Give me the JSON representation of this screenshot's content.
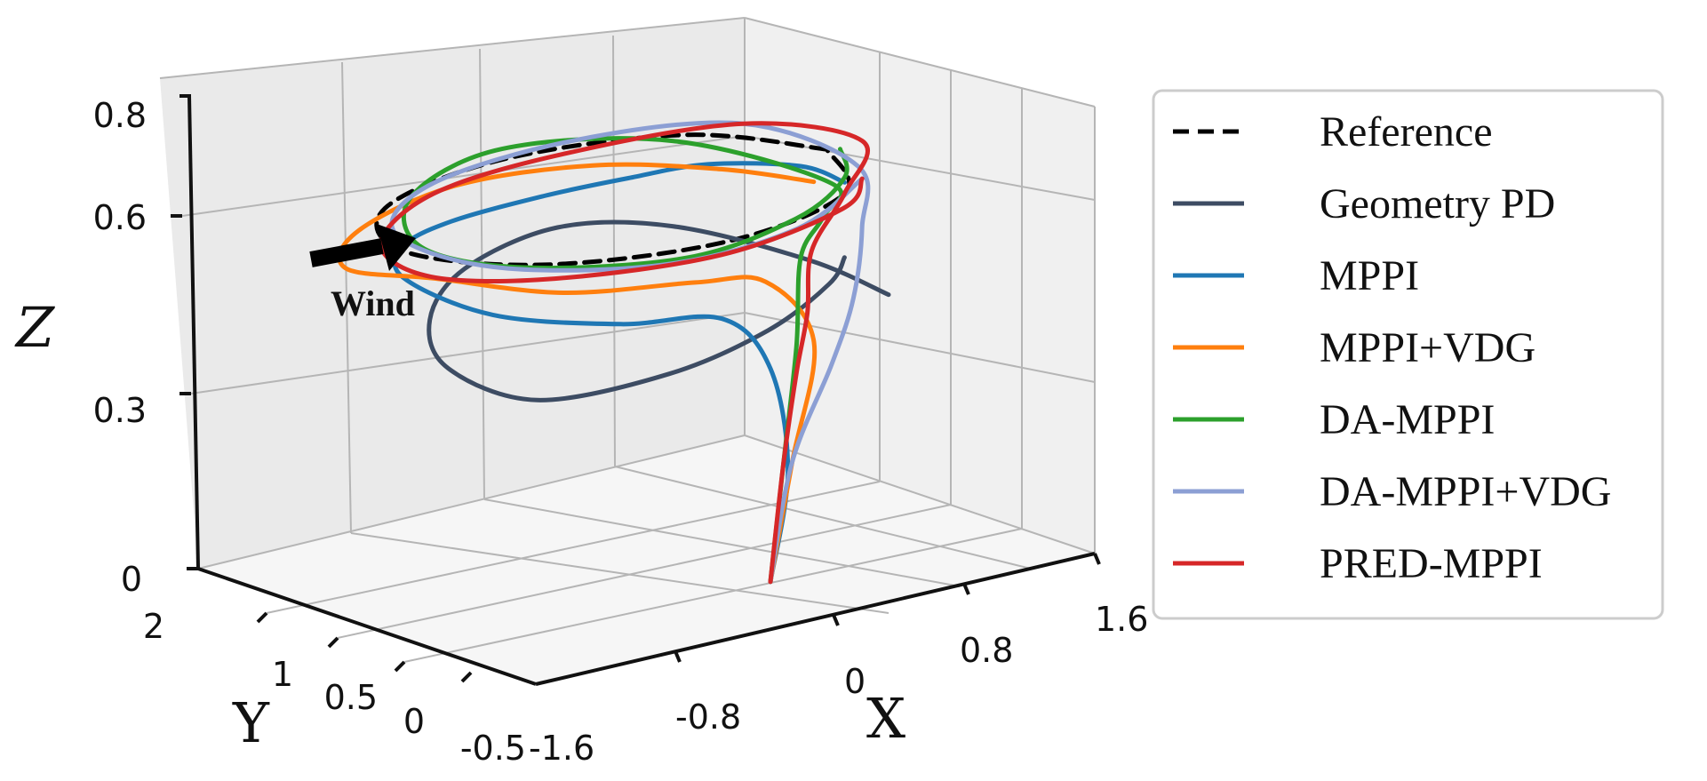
{
  "chart_data": {
    "type": "line",
    "projection": "3d",
    "title": "",
    "xlabel": "X",
    "ylabel": "Y",
    "zlabel": "Z",
    "xticks": [
      "-1.6",
      "-0.8",
      "0",
      "0.8",
      "1.6"
    ],
    "yticks": [
      "-0.5",
      "0",
      "0.5",
      "1",
      "2"
    ],
    "zticks": [
      "0",
      "0.3",
      "0.6",
      "0.8"
    ],
    "xlim": [
      -1.6,
      1.6
    ],
    "ylim": [
      -0.5,
      2
    ],
    "zlim": [
      0,
      0.8
    ],
    "grid": true,
    "legend_position": "right",
    "annotation": {
      "label": "Wind",
      "arrow": "pointing toward +x"
    },
    "series": [
      {
        "name": "Reference",
        "color": "#000000",
        "style": "dashed",
        "x": [
          1.2,
          0.85,
          0.0,
          -0.85,
          -1.2,
          -0.85,
          0.0,
          0.85,
          1.2
        ],
        "y": [
          1.0,
          1.6,
          1.85,
          1.6,
          1.0,
          0.4,
          0.15,
          0.4,
          1.0
        ],
        "z": [
          0.65,
          0.65,
          0.65,
          0.65,
          0.65,
          0.65,
          0.65,
          0.65,
          0.65
        ]
      },
      {
        "name": "Geometry PD",
        "color": "#3d4c63",
        "style": "solid",
        "x": [
          1.4,
          1.1,
          0.7,
          0.2,
          -0.4,
          -0.9,
          -1.1,
          -0.9,
          -0.3,
          0.3,
          0.8,
          1.0
        ],
        "y": [
          0.8,
          1.0,
          1.5,
          1.7,
          1.6,
          1.2,
          0.8,
          0.4,
          0.2,
          0.25,
          0.45,
          0.6
        ],
        "z": [
          0.38,
          0.45,
          0.5,
          0.52,
          0.5,
          0.48,
          0.44,
          0.4,
          0.42,
          0.45,
          0.48,
          0.5
        ]
      },
      {
        "name": "MPPI",
        "color": "#1f77b4",
        "style": "solid",
        "x": [
          0.2,
          0.3,
          0.2,
          0.0,
          -0.5,
          -1.0,
          -1.2,
          -0.9,
          -0.4,
          0.2,
          0.6,
          0.9,
          1.2,
          1.3
        ],
        "y": [
          0.1,
          0.1,
          0.1,
          0.2,
          0.3,
          0.6,
          1.0,
          1.4,
          1.7,
          1.8,
          1.7,
          1.5,
          1.2,
          1.0
        ],
        "z": [
          0.0,
          0.2,
          0.4,
          0.5,
          0.52,
          0.55,
          0.6,
          0.6,
          0.58,
          0.57,
          0.58,
          0.6,
          0.6,
          0.58
        ]
      },
      {
        "name": "MPPI+VDG",
        "color": "#ff7f0e",
        "style": "solid",
        "x": [
          0.2,
          0.4,
          0.6,
          0.4,
          0.0,
          -0.6,
          -1.1,
          -1.3,
          -1.0,
          -0.3,
          0.4,
          0.9,
          1.2
        ],
        "y": [
          0.1,
          0.2,
          0.3,
          0.4,
          0.4,
          0.6,
          0.9,
          1.3,
          1.6,
          1.8,
          1.7,
          1.4,
          1.1
        ],
        "z": [
          0.0,
          0.2,
          0.4,
          0.52,
          0.55,
          0.56,
          0.6,
          0.6,
          0.62,
          0.63,
          0.62,
          0.6,
          0.58
        ]
      },
      {
        "name": "DA-MPPI",
        "color": "#2ca02c",
        "style": "solid",
        "x": [
          0.2,
          0.35,
          0.5,
          0.6,
          0.8,
          1.0,
          0.7,
          0.0,
          -0.7,
          -1.1,
          -0.9,
          -0.2,
          0.5,
          1.0,
          1.2
        ],
        "y": [
          0.1,
          0.2,
          0.3,
          0.4,
          0.5,
          0.7,
          1.5,
          1.85,
          1.6,
          1.0,
          0.5,
          0.2,
          0.3,
          0.6,
          0.9
        ],
        "z": [
          0.0,
          0.2,
          0.4,
          0.55,
          0.6,
          0.63,
          0.66,
          0.67,
          0.66,
          0.65,
          0.64,
          0.63,
          0.64,
          0.65,
          0.66
        ]
      },
      {
        "name": "DA-MPPI+VDG",
        "color": "#8c9fd4",
        "style": "solid",
        "x": [
          0.2,
          0.4,
          0.7,
          0.9,
          1.1,
          1.3,
          1.1,
          0.4,
          -0.5,
          -1.1,
          -1.0,
          -0.3,
          0.5,
          1.1
        ],
        "y": [
          0.1,
          0.2,
          0.3,
          0.4,
          0.6,
          0.9,
          1.5,
          1.8,
          1.7,
          1.2,
          0.6,
          0.25,
          0.3,
          0.6
        ],
        "z": [
          0.0,
          0.2,
          0.35,
          0.45,
          0.55,
          0.62,
          0.66,
          0.66,
          0.66,
          0.66,
          0.64,
          0.62,
          0.62,
          0.64
        ]
      },
      {
        "name": "PRED-MPPI",
        "color": "#d62728",
        "style": "solid",
        "x": [
          0.2,
          0.35,
          0.5,
          0.6,
          0.7,
          1.0,
          1.4,
          1.1,
          0.3,
          -0.5,
          -1.1,
          -1.2,
          -0.8,
          0.0,
          0.8,
          1.1
        ],
        "y": [
          0.1,
          0.2,
          0.3,
          0.35,
          0.45,
          0.6,
          1.0,
          1.5,
          1.8,
          1.7,
          1.3,
          0.8,
          0.4,
          0.2,
          0.35,
          0.6
        ],
        "z": [
          0.0,
          0.2,
          0.35,
          0.45,
          0.55,
          0.62,
          0.65,
          0.66,
          0.64,
          0.64,
          0.63,
          0.62,
          0.62,
          0.62,
          0.63,
          0.64
        ]
      }
    ]
  }
}
